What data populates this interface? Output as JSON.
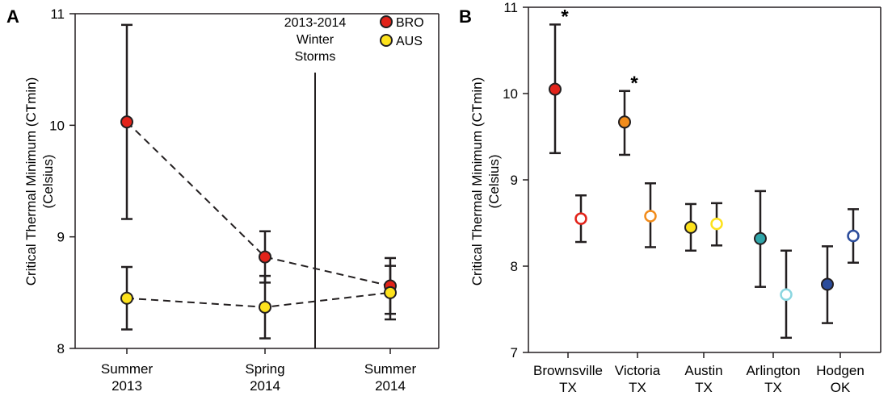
{
  "chart_data": [
    {
      "panel": "A",
      "type": "line",
      "ylabel_line1": "Critical Thermal Minimum (CTmin)",
      "ylabel_line2": "(Celsius)",
      "ylim": [
        8,
        11
      ],
      "yticks": [
        "8",
        "9",
        "10",
        "11"
      ],
      "categories": [
        {
          "line1": "Summer",
          "line2": "2013"
        },
        {
          "line1": "Spring",
          "line2": "2014"
        },
        {
          "line1": "Summer",
          "line2": "2014"
        }
      ],
      "event": {
        "line1": "2013-2014",
        "line2": "Winter",
        "line3": "Storms",
        "x": 1.4
      },
      "series": [
        {
          "name": "BRO",
          "color": "#e2231a",
          "values": [
            10.03,
            8.82,
            8.56
          ],
          "errors": [
            0.87,
            0.23,
            0.25
          ]
        },
        {
          "name": "AUS",
          "color": "#fde21c",
          "values": [
            8.45,
            8.37,
            8.5
          ],
          "errors": [
            0.28,
            0.28,
            0.24
          ]
        }
      ]
    },
    {
      "panel": "B",
      "type": "scatter",
      "ylabel_line1": "Critical Thermal Minimum (CTmin)",
      "ylabel_line2": "(Celsius)",
      "ylim": [
        7,
        11
      ],
      "yticks": [
        "7",
        "8",
        "9",
        "10",
        "11"
      ],
      "categories": [
        {
          "line1": "Brownsville",
          "line2": "TX"
        },
        {
          "line1": "Victoria",
          "line2": "TX"
        },
        {
          "line1": "Austin",
          "line2": "TX"
        },
        {
          "line1": "Arlington",
          "line2": "TX"
        },
        {
          "line1": "Hodgen",
          "line2": "OK"
        }
      ],
      "points": [
        {
          "site": "Brownsville",
          "filled": true,
          "color": "#e2231a",
          "value": 10.05,
          "lo": 9.31,
          "hi": 10.8,
          "star": "*"
        },
        {
          "site": "Brownsville",
          "filled": false,
          "color": "#e2231a",
          "value": 8.55,
          "lo": 8.28,
          "hi": 8.82
        },
        {
          "site": "Victoria",
          "filled": true,
          "color": "#f28c1b",
          "value": 9.67,
          "lo": 9.29,
          "hi": 10.03,
          "star": "*"
        },
        {
          "site": "Victoria",
          "filled": false,
          "color": "#f28c1b",
          "value": 8.58,
          "lo": 8.22,
          "hi": 8.96
        },
        {
          "site": "Austin",
          "filled": true,
          "color": "#fde21c",
          "value": 8.45,
          "lo": 8.18,
          "hi": 8.72
        },
        {
          "site": "Austin",
          "filled": false,
          "color": "#fde21c",
          "value": 8.49,
          "lo": 8.24,
          "hi": 8.73
        },
        {
          "site": "Arlington",
          "filled": true,
          "color": "#2fa5a9",
          "value": 8.32,
          "lo": 7.76,
          "hi": 8.87
        },
        {
          "site": "Arlington",
          "filled": false,
          "color": "#8ad6e0",
          "value": 7.67,
          "lo": 7.17,
          "hi": 8.18
        },
        {
          "site": "Hodgen",
          "filled": true,
          "color": "#2b4c9b",
          "value": 7.79,
          "lo": 7.34,
          "hi": 8.23
        },
        {
          "site": "Hodgen",
          "filled": false,
          "color": "#2b4c9b",
          "value": 8.35,
          "lo": 8.04,
          "hi": 8.66
        }
      ]
    }
  ]
}
